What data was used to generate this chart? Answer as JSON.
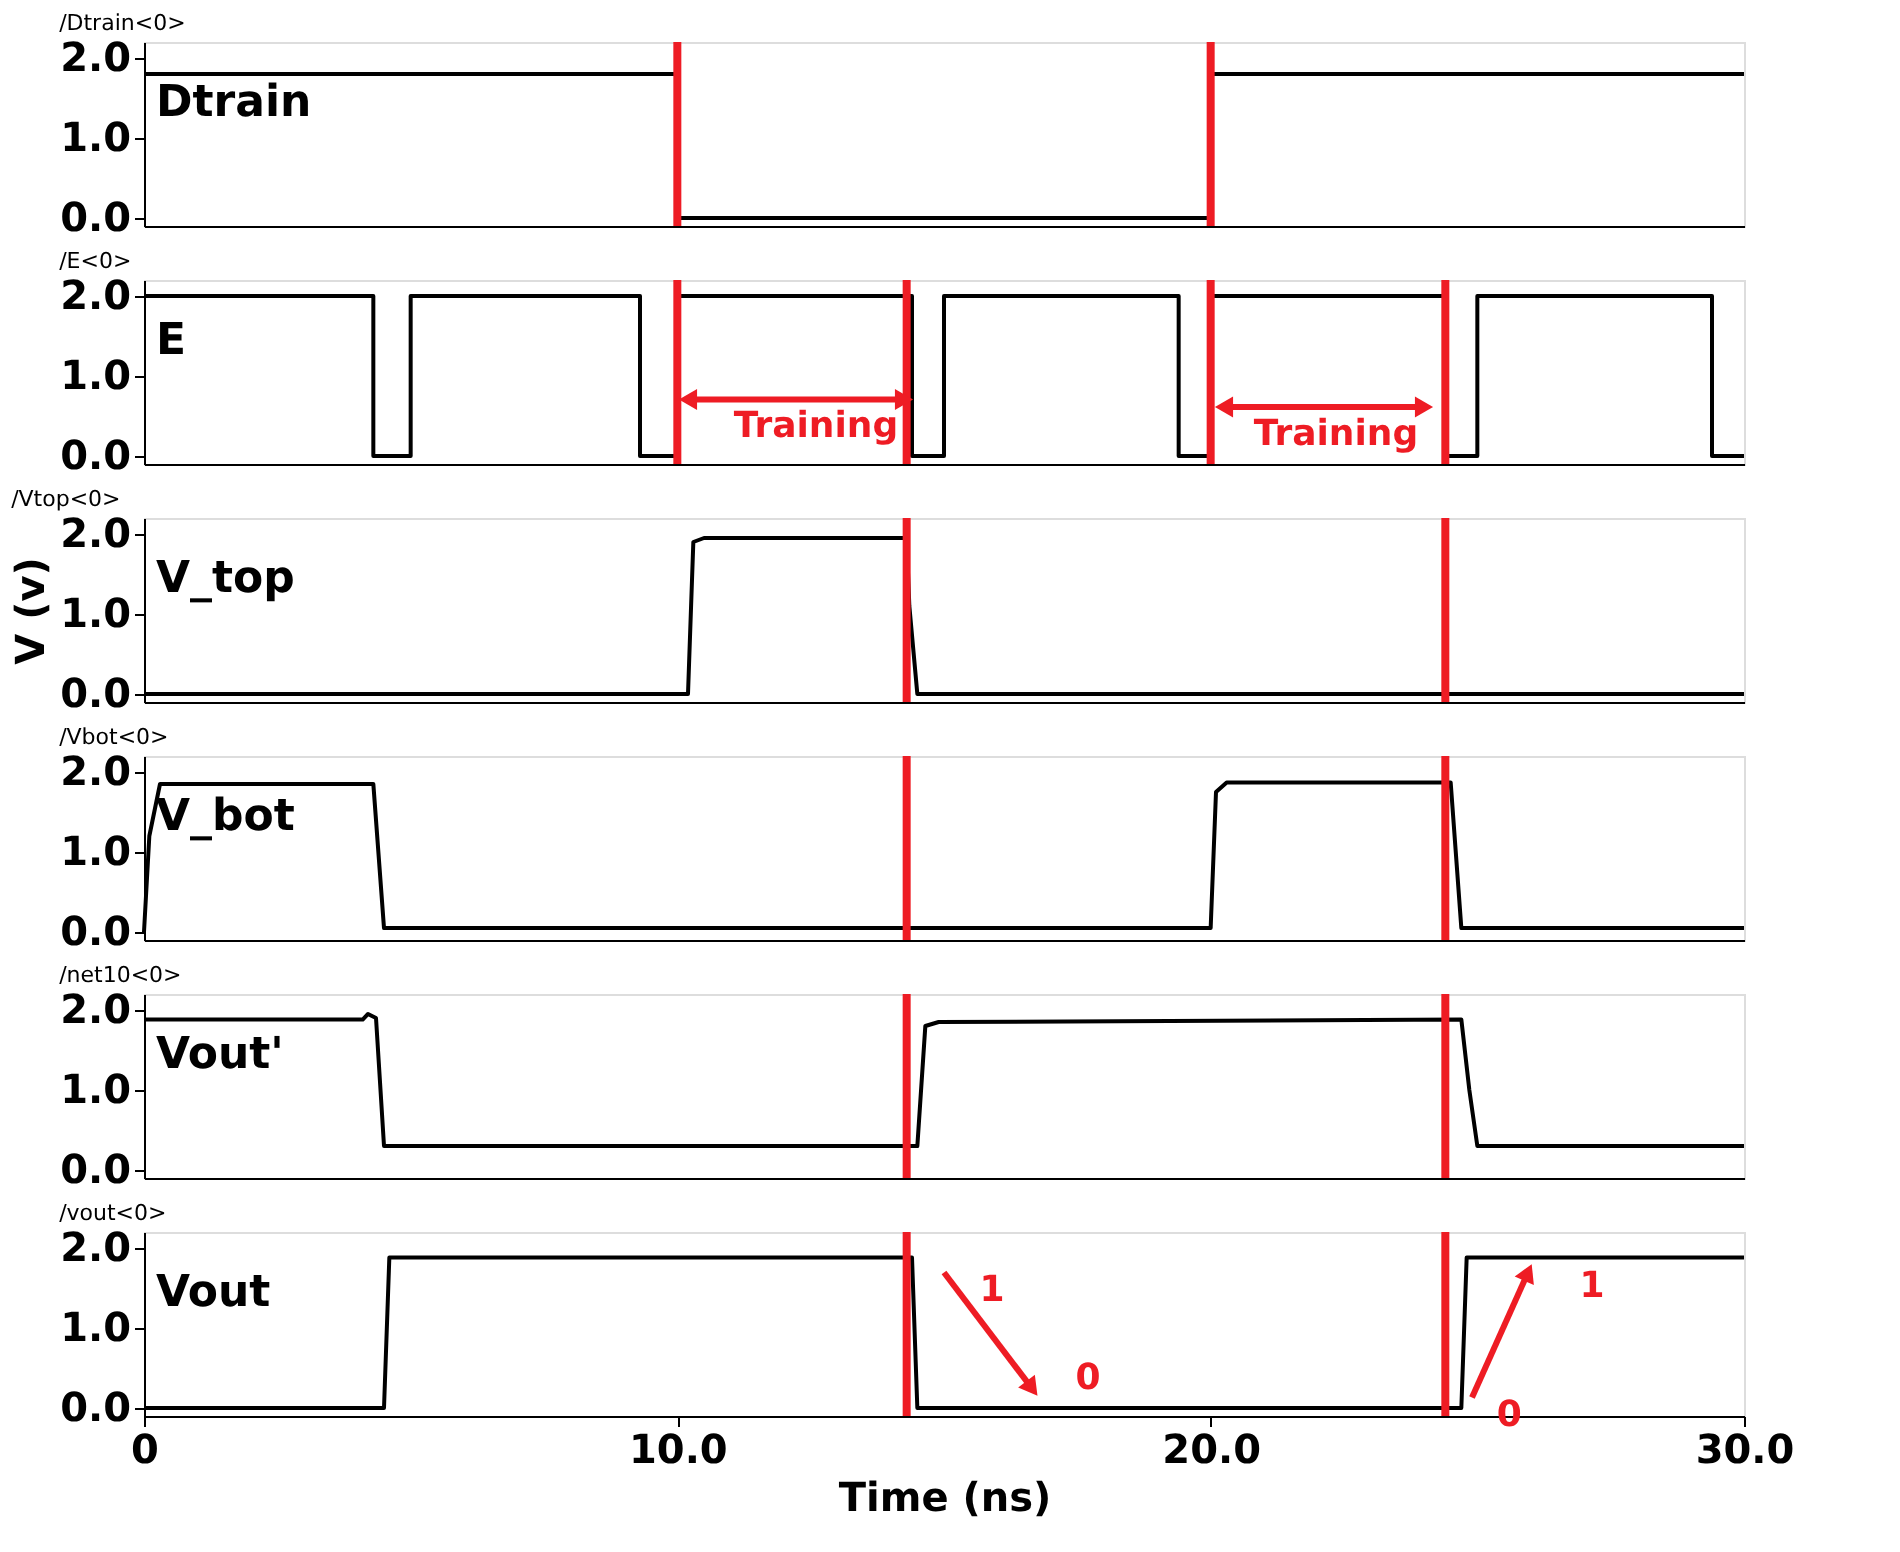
{
  "chart_data": [
    {
      "type": "line",
      "title": "/Dtrain<0>",
      "xlim": [
        0,
        30
      ],
      "ylim": [
        -0.1,
        2.2
      ],
      "yticks": [
        {
          "value": 0,
          "label": "0.0"
        },
        {
          "value": 1,
          "label": "1.0"
        },
        {
          "value": 2,
          "label": "2.0"
        }
      ],
      "tick_labels": "y",
      "grid": false,
      "series": [
        {
          "name": "Dtrain",
          "color": "#000000",
          "x": [
            0,
            10,
            10,
            20,
            20,
            30
          ],
          "values": [
            1.8,
            1.8,
            0,
            0,
            1.8,
            1.8
          ]
        }
      ],
      "ref_lines": [
        {
          "axis": "x",
          "value": 10,
          "color": "#ee1c24"
        },
        {
          "axis": "x",
          "value": 20,
          "color": "#ee1c24"
        }
      ]
    },
    {
      "type": "line",
      "title": "/E<0>",
      "xlim": [
        0,
        30
      ],
      "ylim": [
        -0.1,
        2.2
      ],
      "yticks": [
        {
          "value": 0,
          "label": "0.0"
        },
        {
          "value": 1,
          "label": "1.0"
        },
        {
          "value": 2,
          "label": "2.0"
        }
      ],
      "tick_labels": "y",
      "grid": false,
      "series": [
        {
          "name": "E",
          "color": "#000000",
          "x": [
            0,
            4.3,
            4.3,
            5.0,
            5.0,
            9.3,
            9.3,
            10.0,
            10.0,
            14.4,
            14.4,
            15.0,
            15.0,
            19.4,
            19.4,
            20.0,
            20.0,
            24.4,
            24.4,
            25.0,
            25.0,
            29.4,
            29.4,
            30
          ],
          "values": [
            2,
            2,
            0,
            0,
            2,
            2,
            0,
            0,
            2,
            2,
            0,
            0,
            2,
            2,
            0,
            0,
            2,
            2,
            0,
            0,
            2,
            2,
            0,
            0
          ]
        }
      ],
      "ref_lines": [
        {
          "axis": "x",
          "value": 10,
          "color": "#ee1c24"
        },
        {
          "axis": "x",
          "value": 14.3,
          "color": "#ee1c24"
        },
        {
          "axis": "x",
          "value": 20,
          "color": "#ee1c24"
        },
        {
          "axis": "x",
          "value": 24.4,
          "color": "#ee1c24"
        }
      ],
      "annotations": [
        "Training",
        "Training"
      ]
    },
    {
      "type": "line",
      "title": "/Vtop<0>",
      "ylabel": "V (v)",
      "xlim": [
        0,
        30
      ],
      "ylim": [
        -0.1,
        2.2
      ],
      "yticks": [
        {
          "value": 0,
          "label": "0.0"
        },
        {
          "value": 1,
          "label": "1.0"
        },
        {
          "value": 2,
          "label": "2.0"
        }
      ],
      "tick_labels": "y",
      "grid": false,
      "series": [
        {
          "name": "V_top",
          "color": "#000000",
          "x": [
            0,
            10.2,
            10.3,
            10.5,
            14.3,
            14.35,
            14.5,
            30
          ],
          "values": [
            0,
            0,
            1.9,
            1.95,
            1.95,
            1.1,
            0,
            0
          ]
        }
      ],
      "ref_lines": [
        {
          "axis": "x",
          "value": 14.3,
          "color": "#ee1c24"
        },
        {
          "axis": "x",
          "value": 24.4,
          "color": "#ee1c24"
        }
      ]
    },
    {
      "type": "line",
      "title": "/Vbot<0>",
      "xlim": [
        0,
        30
      ],
      "ylim": [
        -0.1,
        2.2
      ],
      "yticks": [
        {
          "value": 0,
          "label": "0.0"
        },
        {
          "value": 1,
          "label": "1.0"
        },
        {
          "value": 2,
          "label": "2.0"
        }
      ],
      "tick_labels": "y",
      "grid": false,
      "series": [
        {
          "name": "V_bot",
          "color": "#000000",
          "x": [
            0,
            0.1,
            0.3,
            4.3,
            4.5,
            20.0,
            20.1,
            20.3,
            24.5,
            24.7,
            30
          ],
          "values": [
            0,
            1.2,
            1.85,
            1.85,
            0.05,
            0.05,
            1.75,
            1.87,
            1.87,
            0.05,
            0.05
          ]
        }
      ],
      "ref_lines": [
        {
          "axis": "x",
          "value": 14.3,
          "color": "#ee1c24"
        },
        {
          "axis": "x",
          "value": 24.4,
          "color": "#ee1c24"
        }
      ]
    },
    {
      "type": "line",
      "title": "/net10<0>",
      "xlim": [
        0,
        30
      ],
      "ylim": [
        -0.1,
        2.2
      ],
      "yticks": [
        {
          "value": 0,
          "label": "0.0"
        },
        {
          "value": 1,
          "label": "1.0"
        },
        {
          "value": 2,
          "label": "2.0"
        }
      ],
      "tick_labels": "y",
      "grid": false,
      "series": [
        {
          "name": "Vout'",
          "color": "#000000",
          "x": [
            0,
            4.1,
            4.2,
            4.35,
            4.5,
            14.5,
            14.65,
            14.9,
            24.7,
            24.85,
            25.0,
            30
          ],
          "values": [
            1.88,
            1.88,
            1.95,
            1.9,
            0.3,
            0.3,
            1.8,
            1.85,
            1.88,
            1.0,
            0.3,
            0.3
          ]
        }
      ],
      "ref_lines": [
        {
          "axis": "x",
          "value": 14.3,
          "color": "#ee1c24"
        },
        {
          "axis": "x",
          "value": 24.4,
          "color": "#ee1c24"
        }
      ]
    },
    {
      "type": "line",
      "title": "/vout<0>",
      "xlabel": "Time (ns)",
      "xlim": [
        0,
        30
      ],
      "ylim": [
        -0.1,
        2.2
      ],
      "xticks": [
        0,
        {
          "value": 10,
          "label": "10.0"
        },
        {
          "value": 20,
          "label": "20.0"
        },
        {
          "value": 30,
          "label": "30.0"
        }
      ],
      "yticks": [
        {
          "value": 0,
          "label": "0.0"
        },
        {
          "value": 1,
          "label": "1.0"
        },
        {
          "value": 2,
          "label": "2.0"
        }
      ],
      "grid": false,
      "series": [
        {
          "name": "Vout",
          "color": "#000000",
          "x": [
            0,
            4.5,
            4.6,
            14.4,
            14.5,
            24.7,
            24.8,
            30
          ],
          "values": [
            0,
            0,
            1.88,
            1.88,
            0,
            0,
            1.88,
            1.88
          ]
        }
      ],
      "ref_lines": [
        {
          "axis": "x",
          "value": 14.3,
          "color": "#ee1c24"
        },
        {
          "axis": "x",
          "value": 24.4,
          "color": "#ee1c24"
        }
      ],
      "annotations": [
        "1",
        "0",
        {
          "text": "0",
          "x": 24.7,
          "y": 0
        },
        "1"
      ]
    }
  ]
}
